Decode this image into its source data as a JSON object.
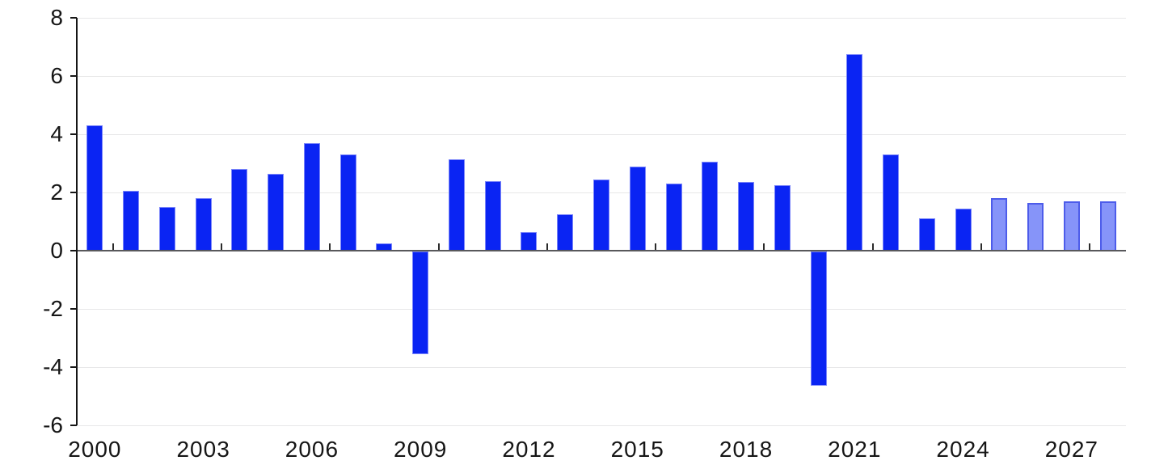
{
  "chart_data": {
    "type": "bar",
    "title": "",
    "categories": [
      "2000",
      "2001",
      "2002",
      "2003",
      "2004",
      "2005",
      "2006",
      "2007",
      "2008",
      "2009",
      "2010",
      "2011",
      "2012",
      "2013",
      "2014",
      "2015",
      "2016",
      "2017",
      "2018",
      "2019",
      "2020",
      "2021",
      "2022",
      "2023",
      "2024",
      "2025",
      "2026",
      "2027",
      "2028"
    ],
    "values": [
      4.3,
      2.05,
      1.5,
      1.8,
      2.8,
      2.65,
      3.7,
      3.3,
      0.25,
      -3.55,
      3.15,
      2.4,
      0.65,
      1.25,
      2.45,
      2.9,
      2.3,
      3.05,
      2.35,
      2.25,
      -4.65,
      6.75,
      3.3,
      1.1,
      1.45,
      1.8,
      1.65,
      1.7,
      1.7
    ],
    "forecast_years": [
      "2025",
      "2026",
      "2027",
      "2028"
    ],
    "xlabel": "",
    "ylabel": "",
    "ylim": [
      -6,
      8
    ],
    "yticks": [
      8,
      6,
      4,
      2,
      0,
      -2,
      -4,
      -6
    ],
    "xtick_labels": [
      "2000",
      "2003",
      "2006",
      "2009",
      "2012",
      "2015",
      "2018",
      "2021",
      "2024",
      "2027"
    ],
    "grid": true,
    "legend": "none",
    "colors": {
      "bar": "#0a24f3",
      "bar_border": "#7b86fa",
      "forecast_bar": "#8694f9",
      "forecast_border": "#4d5cea",
      "gridline": "#e7e7e8",
      "zero_line": "#58585b",
      "axis": "#161616",
      "label": "#161616",
      "background": "#ffffff"
    }
  }
}
